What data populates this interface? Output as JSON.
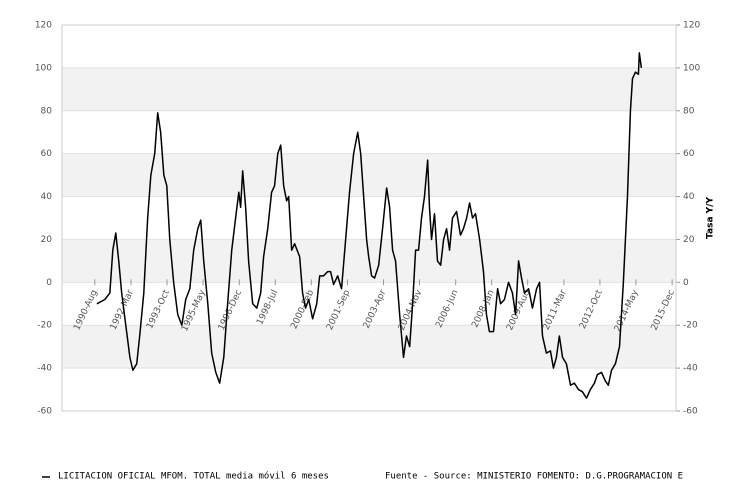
{
  "chart_data": {
    "type": "line",
    "y2label": "Tasa Y/Y",
    "source": "Fuente - Source: MINISTERIO FOMENTO: D.G.PROGRAMACION E",
    "xlim": [
      1989.14,
      2016.09
    ],
    "xticks": [
      {
        "value": 1990.58,
        "label": "1990-Aug"
      },
      {
        "value": 1992.17,
        "label": "1992-Mar"
      },
      {
        "value": 1993.75,
        "label": "1993-Oct"
      },
      {
        "value": 1995.33,
        "label": "1995-May"
      },
      {
        "value": 1996.92,
        "label": "1996-Dec"
      },
      {
        "value": 1998.5,
        "label": "1998-Jul"
      },
      {
        "value": 2000.08,
        "label": "2000-Feb"
      },
      {
        "value": 2001.67,
        "label": "2001-Sep"
      },
      {
        "value": 2003.25,
        "label": "2003-Apr"
      },
      {
        "value": 2004.83,
        "label": "2004-Nov"
      },
      {
        "value": 2006.42,
        "label": "2006-Jun"
      },
      {
        "value": 2008.0,
        "label": "2008-Jan"
      },
      {
        "value": 2009.58,
        "label": "2009-Aug"
      },
      {
        "value": 2011.17,
        "label": "2011-Mar"
      },
      {
        "value": 2012.75,
        "label": "2012-Oct"
      },
      {
        "value": 2014.33,
        "label": "2014-May"
      },
      {
        "value": 2015.92,
        "label": "2015-Dec"
      }
    ],
    "ylim": [
      -60,
      120
    ],
    "yticks": [
      -60,
      -40,
      -20,
      0,
      20,
      40,
      60,
      80,
      100,
      120
    ],
    "y2lim": [
      -60,
      120
    ],
    "y2ticks": [
      -60,
      -40,
      -20,
      0,
      20,
      40,
      60,
      80,
      100,
      120
    ],
    "bands": true,
    "x": [
      1990.67,
      1991.02,
      1991.24,
      1991.37,
      1991.5,
      1991.63,
      1991.76,
      1991.94,
      1992.12,
      1992.25,
      1992.42,
      1992.55,
      1992.73,
      1992.9,
      1993.04,
      1993.21,
      1993.34,
      1993.47,
      1993.61,
      1993.74,
      1993.87,
      1994.04,
      1994.22,
      1994.4,
      1994.57,
      1994.75,
      1994.92,
      1995.1,
      1995.23,
      1995.36,
      1995.54,
      1995.71,
      1995.89,
      1996.06,
      1996.24,
      1996.41,
      1996.59,
      1996.76,
      1996.9,
      1996.98,
      1997.07,
      1997.2,
      1997.33,
      1997.51,
      1997.69,
      1997.86,
      1997.99,
      1998.17,
      1998.34,
      1998.47,
      1998.61,
      1998.74,
      1998.87,
      1999.0,
      1999.09,
      1999.22,
      1999.35,
      1999.57,
      1999.7,
      1999.83,
      1999.97,
      2000.14,
      2000.32,
      2000.45,
      2000.62,
      2000.8,
      2000.93,
      2001.06,
      2001.24,
      2001.41,
      2001.59,
      2001.76,
      2001.94,
      2002.12,
      2002.25,
      2002.38,
      2002.51,
      2002.6,
      2002.73,
      2002.86,
      2003.04,
      2003.21,
      2003.39,
      2003.52,
      2003.65,
      2003.78,
      2003.96,
      2004.13,
      2004.26,
      2004.4,
      2004.53,
      2004.66,
      2004.79,
      2004.92,
      2005.05,
      2005.19,
      2005.27,
      2005.36,
      2005.49,
      2005.62,
      2005.76,
      2005.89,
      2006.02,
      2006.15,
      2006.28,
      2006.46,
      2006.63,
      2006.76,
      2006.9,
      2007.03,
      2007.16,
      2007.29,
      2007.47,
      2007.64,
      2007.77,
      2007.9,
      2008.08,
      2008.26,
      2008.39,
      2008.56,
      2008.74,
      2008.91,
      2009.05,
      2009.18,
      2009.31,
      2009.44,
      2009.62,
      2009.79,
      2009.97,
      2010.1,
      2010.23,
      2010.4,
      2010.58,
      2010.71,
      2010.84,
      2010.97,
      2011.11,
      2011.28,
      2011.46,
      2011.63,
      2011.81,
      2011.98,
      2012.16,
      2012.33,
      2012.51,
      2012.64,
      2012.82,
      2012.99,
      2013.12,
      2013.26,
      2013.43,
      2013.61,
      2013.78,
      2013.96,
      2014.09,
      2014.18,
      2014.31,
      2014.44,
      2014.48,
      2014.57
    ],
    "series": [
      {
        "name": "LICITACION OFICIAL MFOM. TOTAL media móvil 6 meses",
        "color": "#000000",
        "values": [
          -10,
          -8,
          -5,
          15,
          23,
          10,
          -5,
          -20,
          -35,
          -41,
          -38,
          -25,
          -5,
          30,
          50,
          60,
          79,
          70,
          50,
          45,
          20,
          0,
          -15,
          -20,
          -8,
          -3,
          15,
          25,
          29,
          10,
          -10,
          -33,
          -42,
          -47,
          -35,
          -10,
          15,
          30,
          42,
          35,
          52,
          35,
          10,
          -10,
          -12,
          -5,
          12,
          25,
          42,
          45,
          60,
          64,
          45,
          38,
          40,
          15,
          18,
          12,
          -5,
          -12,
          -8,
          -17,
          -10,
          3,
          3,
          5,
          5,
          -1,
          3,
          -3,
          20,
          42,
          60,
          70,
          60,
          40,
          20,
          12,
          3,
          2,
          8,
          25,
          44,
          35,
          15,
          10,
          -15,
          -35,
          -25,
          -30,
          -10,
          15,
          15,
          30,
          40,
          57,
          35,
          20,
          32,
          10,
          8,
          20,
          25,
          15,
          30,
          33,
          22,
          25,
          30,
          37,
          30,
          32,
          20,
          5,
          -15,
          -23,
          -23,
          -3,
          -10,
          -8,
          0,
          -5,
          -15,
          10,
          2,
          -5,
          -3,
          -12,
          -3,
          0,
          -25,
          -33,
          -32,
          -40,
          -35,
          -25,
          -35,
          -38,
          -48,
          -47,
          -50,
          -51,
          -54,
          -50,
          -47,
          -43,
          -42,
          -46,
          -48,
          -41,
          -38,
          -30,
          0,
          40,
          80,
          95,
          98,
          97,
          107,
          100
        ]
      }
    ]
  }
}
